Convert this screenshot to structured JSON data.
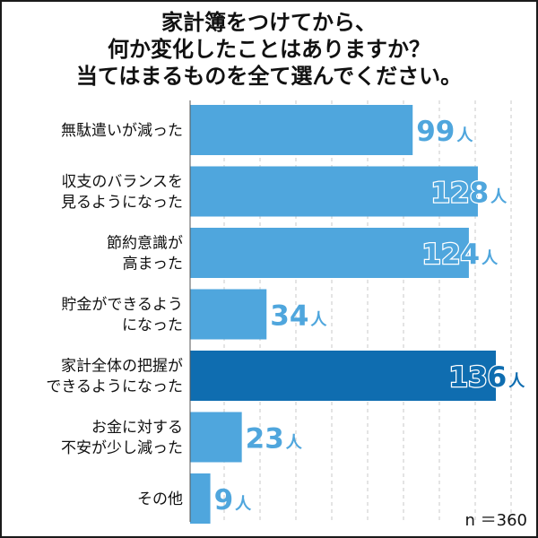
{
  "title_lines": [
    "家計簿をつけてから、",
    "何か変化したことはありますか？",
    "当てはまるものを全て選んでください。"
  ],
  "note": "n ＝360",
  "unit": "人",
  "colors": {
    "bar": "#4fa6dd",
    "bar_highlight": "#0f6db0",
    "value_text": "#4fa6dd",
    "grid": "#c8c8c8"
  },
  "chart_data": {
    "type": "bar",
    "orientation": "horizontal",
    "categories": [
      [
        "無駄遣いが減った"
      ],
      [
        "収支のバランスを",
        "見るようになった"
      ],
      [
        "節約意識が",
        "高まった"
      ],
      [
        "貯金ができるよう",
        "になった"
      ],
      [
        "家計全体の把握が",
        "できるようになった"
      ],
      [
        "お金に対する",
        "不安が少し減った"
      ],
      [
        "その他"
      ]
    ],
    "values": [
      99,
      128,
      124,
      34,
      136,
      23,
      9
    ],
    "highlight_index": 4,
    "xlim": [
      0,
      136
    ],
    "grid": true
  }
}
